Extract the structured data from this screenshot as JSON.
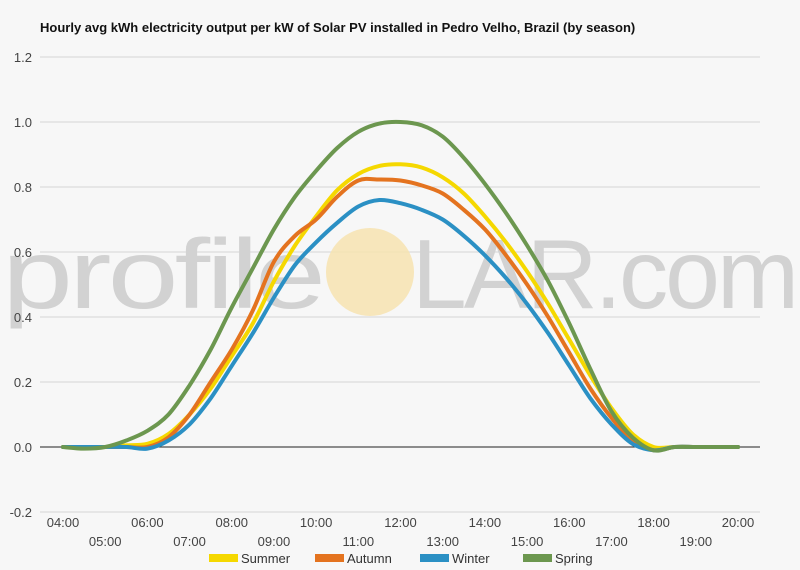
{
  "chart_data": {
    "type": "line",
    "title": "Hourly avg kWh electricity output per kW of Solar PV installed in Pedro Velho, Brazil (by season)",
    "xlabel": "",
    "ylabel": "",
    "x": [
      "04:00",
      "04:30",
      "05:00",
      "05:30",
      "06:00",
      "06:30",
      "07:00",
      "07:30",
      "08:00",
      "08:30",
      "09:00",
      "09:30",
      "10:00",
      "10:30",
      "11:00",
      "11:30",
      "12:00",
      "12:30",
      "13:00",
      "13:30",
      "14:00",
      "14:30",
      "15:00",
      "15:30",
      "16:00",
      "16:30",
      "17:00",
      "17:30",
      "18:00",
      "18:30",
      "19:00",
      "19:30",
      "20:00"
    ],
    "x_tick_labels": [
      "04:00",
      "05:00",
      "06:00",
      "07:00",
      "08:00",
      "09:00",
      "10:00",
      "11:00",
      "12:00",
      "13:00",
      "14:00",
      "15:00",
      "16:00",
      "17:00",
      "18:00",
      "19:00",
      "20:00"
    ],
    "ylim": [
      -0.2,
      1.2
    ],
    "y_ticks": [
      "-0.2",
      "0.0",
      "0.2",
      "0.4",
      "0.6",
      "0.8",
      "1.0",
      "1.2"
    ],
    "grid": true,
    "legend_position": "bottom",
    "series": [
      {
        "name": "Summer",
        "color": "#f5d800",
        "values": [
          0,
          0,
          0,
          0.005,
          0.01,
          0.04,
          0.1,
          0.18,
          0.28,
          0.38,
          0.51,
          0.62,
          0.71,
          0.79,
          0.84,
          0.865,
          0.87,
          0.86,
          0.83,
          0.78,
          0.71,
          0.63,
          0.54,
          0.44,
          0.33,
          0.22,
          0.12,
          0.04,
          0,
          0,
          0,
          0,
          0
        ]
      },
      {
        "name": "Autumn",
        "color": "#e4731f",
        "values": [
          0,
          0,
          0,
          0,
          0,
          0.03,
          0.1,
          0.2,
          0.3,
          0.42,
          0.57,
          0.65,
          0.7,
          0.77,
          0.82,
          0.823,
          0.82,
          0.805,
          0.78,
          0.73,
          0.67,
          0.59,
          0.5,
          0.4,
          0.29,
          0.18,
          0.09,
          0.02,
          -0.01,
          0,
          0,
          0,
          0
        ]
      },
      {
        "name": "Winter",
        "color": "#2b90c4",
        "values": [
          0,
          0,
          0,
          0,
          -0.005,
          0.02,
          0.07,
          0.15,
          0.25,
          0.35,
          0.46,
          0.56,
          0.63,
          0.69,
          0.74,
          0.76,
          0.75,
          0.73,
          0.7,
          0.65,
          0.59,
          0.52,
          0.44,
          0.35,
          0.25,
          0.15,
          0.07,
          0.01,
          -0.01,
          0,
          0,
          0,
          0
        ]
      },
      {
        "name": "Spring",
        "color": "#6c974f",
        "values": [
          0,
          -0.005,
          0,
          0.02,
          0.05,
          0.1,
          0.19,
          0.3,
          0.43,
          0.55,
          0.67,
          0.77,
          0.85,
          0.92,
          0.97,
          0.995,
          1.0,
          0.99,
          0.955,
          0.89,
          0.81,
          0.72,
          0.62,
          0.51,
          0.38,
          0.24,
          0.11,
          0.03,
          -0.01,
          0,
          0,
          0,
          0
        ]
      }
    ]
  },
  "watermark": {
    "left": "profile",
    "right": "LAR.com"
  }
}
